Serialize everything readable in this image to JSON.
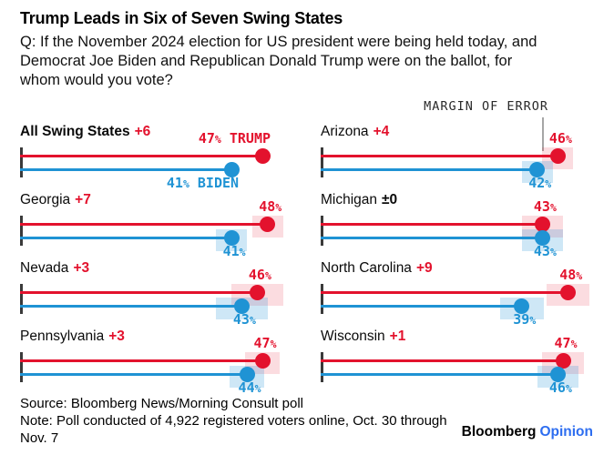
{
  "title": "Trump Leads in Six of Seven Swing States",
  "question_lines": [
    "Q: If the November 2024 election for US president were being held today, and",
    "Democrat Joe Biden and Republican Donald Trump were on the ballot, for",
    "whom would you vote?"
  ],
  "annotation": {
    "label": "MARGIN OF ERROR"
  },
  "colors": {
    "trump_red": "#e3122d",
    "biden_blue": "#1f93d4",
    "trump_band": "rgba(227,18,45,0.15)",
    "biden_band": "rgba(31,147,212,0.22)",
    "tie_black": "#0a0a0a",
    "tick_gray": "#3a3a3a",
    "pointer_gray": "#a6a6a6",
    "opinion_blue": "#2e6ef0"
  },
  "chart_data": {
    "type": "dumbbell",
    "unit": "percent",
    "xmax": 53,
    "series": [
      {
        "name": "Trump",
        "color": "#e3122d"
      },
      {
        "name": "Biden",
        "color": "#1f93d4"
      }
    ],
    "states": [
      {
        "name": "All Swing States",
        "lead": "+6",
        "trump": 47,
        "biden": 41,
        "moe": null,
        "trump_label": "47% TRUMP",
        "biden_label": "41% BIDEN",
        "emphasis": true,
        "tie": false
      },
      {
        "name": "Arizona",
        "lead": "+4",
        "trump": 46,
        "biden": 42,
        "moe": 3.0,
        "tie": false
      },
      {
        "name": "Georgia",
        "lead": "+7",
        "trump": 48,
        "biden": 41,
        "moe": 3.0,
        "tie": false
      },
      {
        "name": "Michigan",
        "lead": "±0",
        "trump": 43,
        "biden": 43,
        "moe": 4.0,
        "tie": true
      },
      {
        "name": "Nevada",
        "lead": "+3",
        "trump": 46,
        "biden": 43,
        "moe": 5.0,
        "tie": false
      },
      {
        "name": "North Carolina",
        "lead": "+9",
        "trump": 48,
        "biden": 39,
        "moe": 4.2,
        "tie": false
      },
      {
        "name": "Pennsylvania",
        "lead": "+3",
        "trump": 47,
        "biden": 44,
        "moe": 3.4,
        "tie": false
      },
      {
        "name": "Wisconsin",
        "lead": "+1",
        "trump": 47,
        "biden": 46,
        "moe": 4.0,
        "tie": false
      }
    ]
  },
  "footer": {
    "source": "Source: Bloomberg News/Morning Consult poll",
    "note_lines": [
      "Note: Poll conducted of 4,922 registered voters online, Oct. 30 through",
      "Nov. 7"
    ],
    "logo_black": "Bloomberg",
    "logo_accent": "Opinion"
  }
}
